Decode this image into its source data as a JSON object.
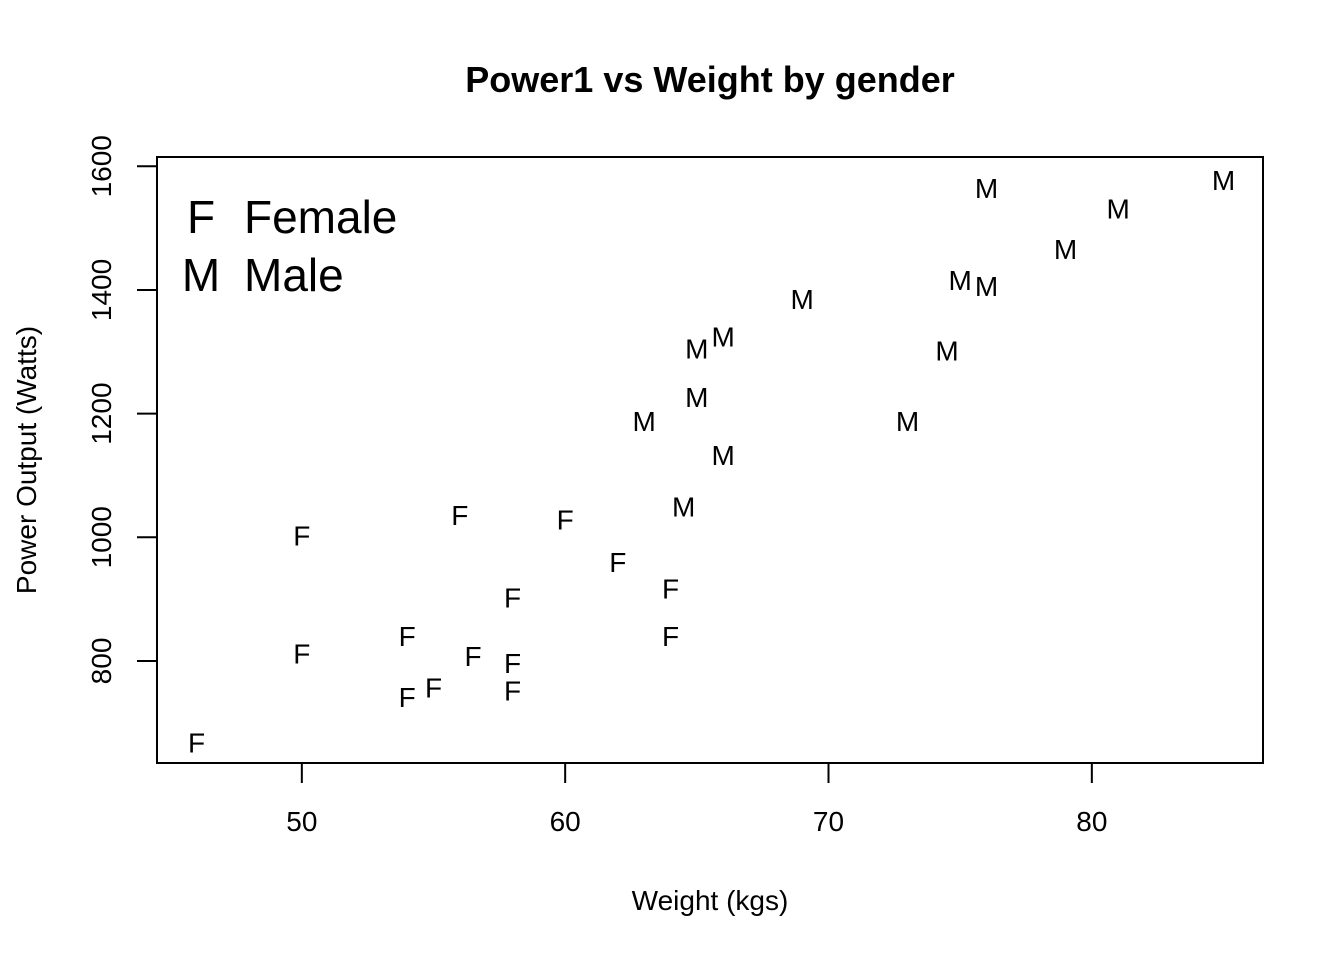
{
  "chart_data": {
    "type": "scatter",
    "title": "Power1 vs Weight by gender",
    "xlabel": "Weight (kgs)",
    "ylabel": "Power Output (Watts)",
    "xlim": [
      44.5,
      86.5
    ],
    "ylim": [
      635,
      1615
    ],
    "x_ticks": [
      50,
      60,
      70,
      80
    ],
    "y_ticks": [
      800,
      1000,
      1200,
      1400,
      1600
    ],
    "grid": false,
    "legend_position": "top-left",
    "legend": [
      {
        "symbol": "F",
        "label": "Female"
      },
      {
        "symbol": "M",
        "label": "Male"
      }
    ],
    "series": [
      {
        "symbol": "F",
        "points": [
          {
            "x": 46,
            "y": 668
          },
          {
            "x": 50,
            "y": 1003
          },
          {
            "x": 50,
            "y": 812
          },
          {
            "x": 54,
            "y": 840
          },
          {
            "x": 54,
            "y": 742
          },
          {
            "x": 55,
            "y": 757
          },
          {
            "x": 56,
            "y": 1036
          },
          {
            "x": 56.5,
            "y": 808
          },
          {
            "x": 58,
            "y": 903
          },
          {
            "x": 58,
            "y": 797
          },
          {
            "x": 58,
            "y": 752
          },
          {
            "x": 60,
            "y": 1029
          },
          {
            "x": 62,
            "y": 960
          },
          {
            "x": 64,
            "y": 917
          },
          {
            "x": 64,
            "y": 840
          }
        ]
      },
      {
        "symbol": "M",
        "points": [
          {
            "x": 63,
            "y": 1188
          },
          {
            "x": 64.5,
            "y": 1050
          },
          {
            "x": 65,
            "y": 1305
          },
          {
            "x": 65,
            "y": 1227
          },
          {
            "x": 66,
            "y": 1325
          },
          {
            "x": 66,
            "y": 1133
          },
          {
            "x": 69,
            "y": 1385
          },
          {
            "x": 73,
            "y": 1188
          },
          {
            "x": 74.5,
            "y": 1302
          },
          {
            "x": 75,
            "y": 1416
          },
          {
            "x": 76,
            "y": 1565
          },
          {
            "x": 76,
            "y": 1406
          },
          {
            "x": 79,
            "y": 1466
          },
          {
            "x": 81,
            "y": 1532
          },
          {
            "x": 85,
            "y": 1578
          }
        ]
      }
    ]
  }
}
